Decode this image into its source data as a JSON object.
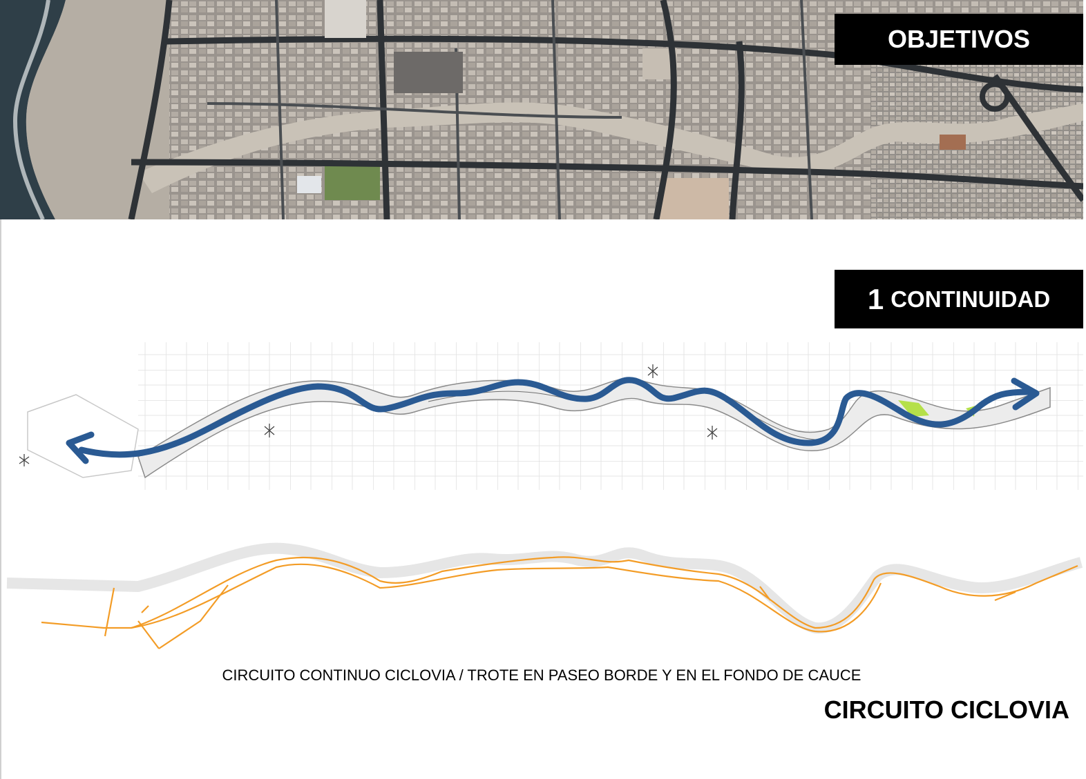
{
  "header": {
    "title": "OBJETIVOS"
  },
  "objective": {
    "number": "1",
    "label": "CONTINUIDAD"
  },
  "plan": {
    "arrow_color": "#2a5a93",
    "arrow_icon": "double-headed-arrow"
  },
  "route": {
    "path_color": "#f39c26"
  },
  "caption": "CIRCUITO  CONTINUO CICLOVIA / TROTE EN PASEO BORDE Y EN EL FONDO DE CAUCE",
  "footer": {
    "title": "CIRCUITO CICLOVIA"
  }
}
